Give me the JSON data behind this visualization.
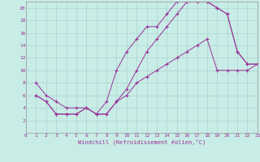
{
  "xlabel": "Windchill (Refroidissement éolien,°C)",
  "bg_color": "#c8ece6",
  "grid_color": "#a8ccca",
  "line_color": "#993399",
  "xlim": [
    0,
    23
  ],
  "ylim": [
    0,
    21
  ],
  "xticks": [
    0,
    1,
    2,
    3,
    4,
    5,
    6,
    7,
    8,
    9,
    10,
    11,
    12,
    13,
    14,
    15,
    16,
    17,
    18,
    19,
    20,
    21,
    22,
    23
  ],
  "yticks": [
    2,
    4,
    6,
    8,
    10,
    12,
    14,
    16,
    18,
    20
  ],
  "line1_x": [
    1,
    2,
    3,
    4,
    5,
    6,
    7,
    8,
    9,
    10,
    11,
    12,
    13,
    14,
    15,
    16,
    17,
    18,
    19,
    20,
    21,
    22,
    23
  ],
  "line1_y": [
    8,
    6,
    5,
    4,
    4,
    4,
    3,
    5,
    10,
    13,
    15,
    17,
    17,
    19,
    21,
    21,
    21,
    21,
    20,
    19,
    13,
    11,
    11
  ],
  "line2_x": [
    1,
    2,
    3,
    4,
    5,
    6,
    7,
    8,
    9,
    10,
    11,
    12,
    13,
    14,
    15,
    16,
    17,
    18,
    19,
    20,
    21,
    22,
    23
  ],
  "line2_y": [
    6,
    5,
    3,
    3,
    3,
    4,
    3,
    3,
    5,
    7,
    10,
    13,
    15,
    17,
    19,
    21,
    21,
    21,
    20,
    19,
    13,
    11,
    11
  ],
  "line3_x": [
    1,
    2,
    3,
    4,
    5,
    6,
    7,
    8,
    9,
    10,
    11,
    12,
    13,
    14,
    15,
    16,
    17,
    18,
    19,
    20,
    21,
    22,
    23
  ],
  "line3_y": [
    6,
    5,
    3,
    3,
    3,
    4,
    3,
    3,
    5,
    6,
    8,
    9,
    10,
    11,
    12,
    13,
    14,
    15,
    10,
    10,
    10,
    10,
    11
  ]
}
